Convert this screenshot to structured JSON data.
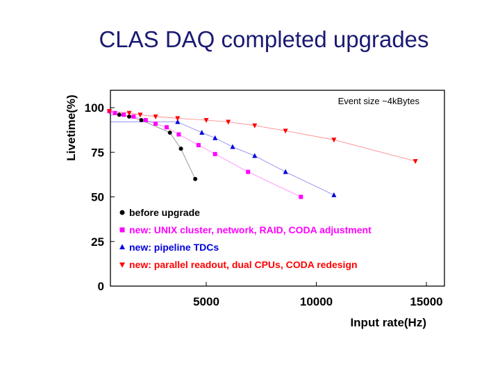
{
  "slide": {
    "title": "CLAS DAQ completed upgrades"
  },
  "chart_data": {
    "type": "scatter",
    "xlabel": "Input rate(Hz)",
    "ylabel": "Livetime(%)",
    "xlim": [
      0,
      15000
    ],
    "ylim": [
      0,
      110
    ],
    "xticks": [
      5000,
      10000,
      15000
    ],
    "yticks": [
      0,
      25,
      50,
      75,
      100
    ],
    "grid": false,
    "legend_placement": "bottom-left",
    "annotation": "Event size ~4kBytes",
    "series": [
      {
        "name": "before upgrade",
        "color": "#000000",
        "marker": "circle",
        "x": [
          1050,
          1500,
          2050,
          3350,
          3850,
          4500
        ],
        "y": [
          96,
          95,
          93,
          86,
          77,
          60
        ]
      },
      {
        "name": "new: UNIX cluster, network, RAID, CODA adjustment",
        "color": "#ff00ff",
        "marker": "square",
        "x": [
          600,
          850,
          1250,
          1700,
          2250,
          2700,
          3200,
          3750,
          4650,
          5400,
          6900,
          9300
        ],
        "y": [
          98,
          97,
          96,
          95,
          93,
          91,
          89,
          85,
          79,
          74,
          64,
          50
        ]
      },
      {
        "name": "new: pipeline TDCs",
        "color": "#0000dd",
        "marker": "triangle-up",
        "x": [
          3700,
          4800,
          5400,
          6200,
          7200,
          8600,
          10800
        ],
        "y": [
          92,
          86,
          83,
          78,
          73,
          64,
          51
        ]
      },
      {
        "name": "new: parallel readout, dual CPUs, CODA redesign",
        "color": "#ff0000",
        "marker": "triangle-down",
        "x": [
          600,
          1500,
          2000,
          2700,
          3700,
          5000,
          6000,
          7200,
          8600,
          10800,
          14500
        ],
        "y": [
          98,
          97,
          96,
          95,
          94,
          93,
          92,
          90,
          87,
          82,
          70
        ]
      }
    ]
  }
}
